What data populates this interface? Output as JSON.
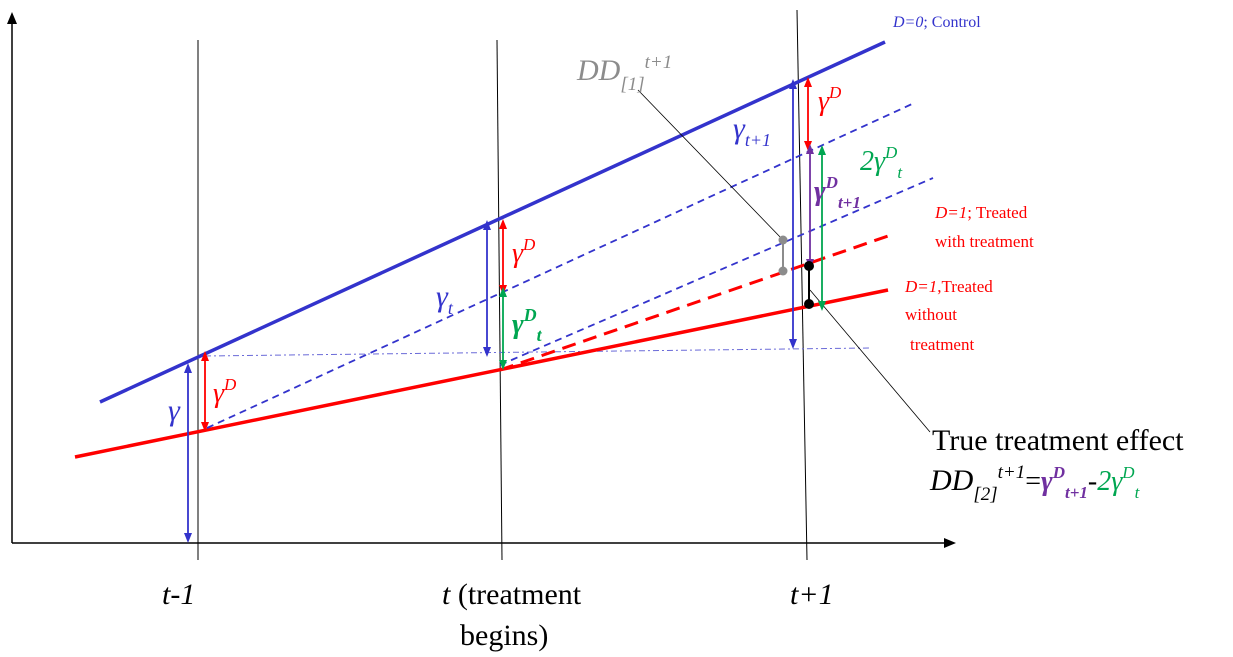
{
  "colors": {
    "axis": "#000000",
    "control": "#3333cc",
    "treated": "#ff0000",
    "gamma_d": "#ff0000",
    "gamma_dt": "#00a651",
    "gamma_dt1": "#7030a0",
    "dd1": "#8c8c8c",
    "gamma": "#3333cc",
    "ref_line": "#6a6ad8",
    "guide": "#000000"
  },
  "periods": {
    "t_minus_1": "t-1",
    "t": "t",
    "t_suffix_1": "(treatment",
    "t_suffix_2": "begins)",
    "t_plus_1": "t+1"
  },
  "lines": {
    "control": {
      "italic": "D=0",
      "rest": "; Control"
    },
    "treated_with": {
      "italic": "D=1",
      "rest_1": "; Treated",
      "rest_2": "with treatment"
    },
    "treated_without": {
      "italic": "D=1",
      "rest_1": ",Treated",
      "rest_2": "without",
      "rest_3": "treatment"
    }
  },
  "symbols": {
    "gamma": "γ",
    "gamma_t_base": "γ",
    "gamma_t_sub": "t",
    "gamma_t1_base": "γ",
    "gamma_t1_sub": "t+1",
    "gamma_d_base": "γ",
    "gamma_d_sup": "D",
    "gamma_dt_base": "γ",
    "gamma_dt_sup": "D",
    "gamma_dt_sub": "t",
    "two_gamma_dt_coef": "2γ",
    "two_gamma_dt_sup": "D",
    "two_gamma_dt_sub": "t",
    "gamma_dt1_base": "γ",
    "gamma_dt1_sup": "D",
    "gamma_dt1_sub": "t+1"
  },
  "dd1_label": {
    "base": "DD",
    "sub": "[1]",
    "sup": "t+1"
  },
  "true_effect": {
    "title": "True treatment effect",
    "dd_base": "DD",
    "dd_sub": "[2]",
    "dd_sup": "t+1",
    "equals": "=",
    "rhs_1_base": "γ",
    "rhs_1_sup": "D",
    "rhs_1_sub": "t+1",
    "minus": "-",
    "rhs_2_base": "2γ",
    "rhs_2_sup": "D",
    "rhs_2_sub": "t"
  }
}
